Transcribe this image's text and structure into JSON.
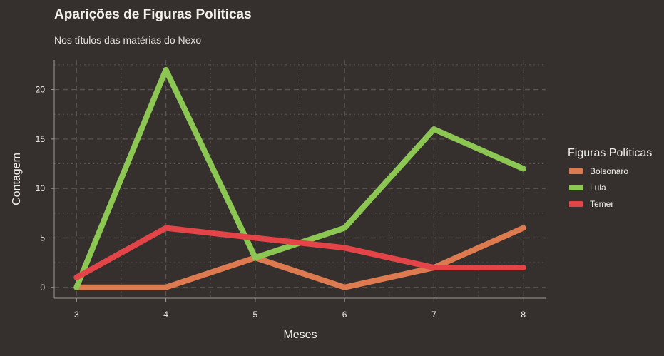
{
  "theme": {
    "background": "#35302d",
    "grid_color": "#5a5450",
    "axis_color": "#a09a95",
    "text_color": "#f2f0ea"
  },
  "chart_data": {
    "type": "line",
    "title": "Aparições de Figuras Políticas",
    "subtitle": "Nos títulos das matérias do Nexo",
    "xlabel": "Meses",
    "ylabel": "Contagem",
    "x": [
      3,
      4,
      5,
      6,
      7,
      8
    ],
    "xlim": [
      2.75,
      8.25
    ],
    "ylim": [
      -1.1,
      23
    ],
    "xticks": [
      3,
      4,
      5,
      6,
      7,
      8
    ],
    "yticks": [
      0,
      5,
      10,
      15,
      20
    ],
    "grid": true,
    "legend": {
      "title": "Figuras Políticas",
      "position": "right"
    },
    "series": [
      {
        "name": "Bolsonaro",
        "color": "#dd7a4f",
        "values": [
          0,
          0,
          3,
          0,
          2,
          6
        ]
      },
      {
        "name": "Lula",
        "color": "#8cc653",
        "values": [
          0,
          22,
          3,
          6,
          16,
          12
        ]
      },
      {
        "name": "Temer",
        "color": "#e24447",
        "values": [
          1,
          6,
          5,
          4,
          2,
          2
        ]
      }
    ]
  }
}
